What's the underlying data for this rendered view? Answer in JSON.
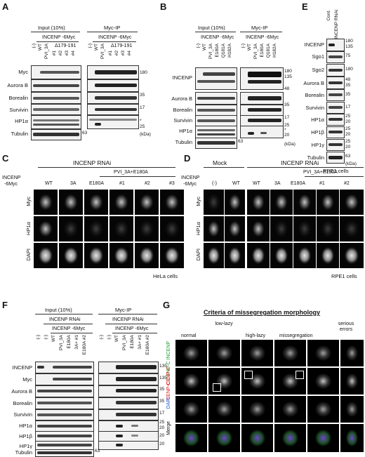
{
  "panels": {
    "A": "A",
    "B": "B",
    "C": "C",
    "D": "D",
    "E": "E",
    "F": "F",
    "G": "G"
  },
  "panelA": {
    "input_label": "Input (10%)",
    "ip_label": "Myc-IP",
    "construct": "INCENP -6Myc",
    "lanes": [
      "(-)",
      "WT",
      "PVI_3A",
      "#1",
      "#2",
      "#3",
      "#4"
    ],
    "delta_label": "Δ179-191",
    "rows": [
      "Myc",
      "Aurora B",
      "Borealin",
      "Survivin",
      "HP1α",
      "Tubulin"
    ],
    "mw": [
      "180",
      "35",
      "17",
      "25",
      "63"
    ],
    "asterisk": "*",
    "kda": "(kDa)"
  },
  "panelB": {
    "input_label": "Input (10%)",
    "ip_label": "Myc-IP",
    "construct": "INCENP -6Myc",
    "lanes": [
      "(-)",
      "WT",
      "PVI_3A",
      "E180A",
      "Q181A",
      "H182A"
    ],
    "rows": [
      "INCENP",
      "Aurora B",
      "Borealin",
      "Survivin",
      "HP1α",
      "Tubulin"
    ],
    "mw": [
      "180",
      "135",
      "48",
      "35",
      "17",
      "25",
      "20",
      "63"
    ],
    "asterisk": "*",
    "kda": "(kDa)"
  },
  "panelC": {
    "header": "INCENP RNAi",
    "subheader": "PVI_3A+E180A",
    "side": [
      "INCENP",
      "-6Myc"
    ],
    "cols": [
      "WT",
      "3A",
      "E180A",
      "#1",
      "#2",
      "#3"
    ],
    "rows": [
      "Myc",
      "HP1α",
      "DAPI"
    ],
    "cells": "HeLa cells"
  },
  "panelD": {
    "mock": "Mock",
    "header": "INCENP RNAi",
    "subheader": "PVI_3A+E180A",
    "side": [
      "INCENP",
      "-6Myc"
    ],
    "cols": [
      "(-)",
      "WT",
      "WT",
      "3A",
      "E180A",
      "#1",
      "#2"
    ],
    "rows": [
      "Myc",
      "HP1α",
      "DAPI"
    ],
    "cells": "RPE1 cells"
  },
  "panelE": {
    "lanes": [
      "Cont.",
      "INCENP RNAi"
    ],
    "rows": [
      "INCENP",
      "Sgo1",
      "Sgo2",
      "Aurora B",
      "Borealin",
      "Survivin",
      "HP1α",
      "HP1β",
      "HP1γ",
      "Tubulin"
    ],
    "mw": [
      "180",
      "135",
      "75",
      "180",
      "48",
      "35",
      "35",
      "17",
      "25",
      "20",
      "25",
      "20",
      "25",
      "20",
      "63"
    ],
    "kda": "(kDa)",
    "cells": "RPE1 cells"
  },
  "panelF": {
    "input_label": "Input (10%)",
    "ip_label": "Myc-IP",
    "rnai": "INCENP RNAi",
    "construct": "INCENP -6Myc",
    "lanes": [
      "(-)",
      "(-)",
      "WT",
      "PVI_3A",
      "E180A",
      "3A+ #1",
      "E180A #2"
    ],
    "rows": [
      "INCENP",
      "Myc",
      "Aurora B",
      "Borealin",
      "Survivin",
      "HP1α",
      "HP1β",
      "HP1γ",
      "Tubulin"
    ],
    "mw": [
      "135",
      "135",
      "35",
      "35",
      "17",
      "25",
      "20",
      "20",
      "20",
      "63"
    ]
  },
  "panelG": {
    "title": "Criteria of missegregation morphology",
    "cols": [
      "normal",
      "low-lazy",
      "high-lazy",
      "missegregation",
      "serious errors"
    ],
    "rows": [
      "CENP-C INCENP",
      "CENP-C",
      "DAPI",
      "Merge"
    ]
  }
}
